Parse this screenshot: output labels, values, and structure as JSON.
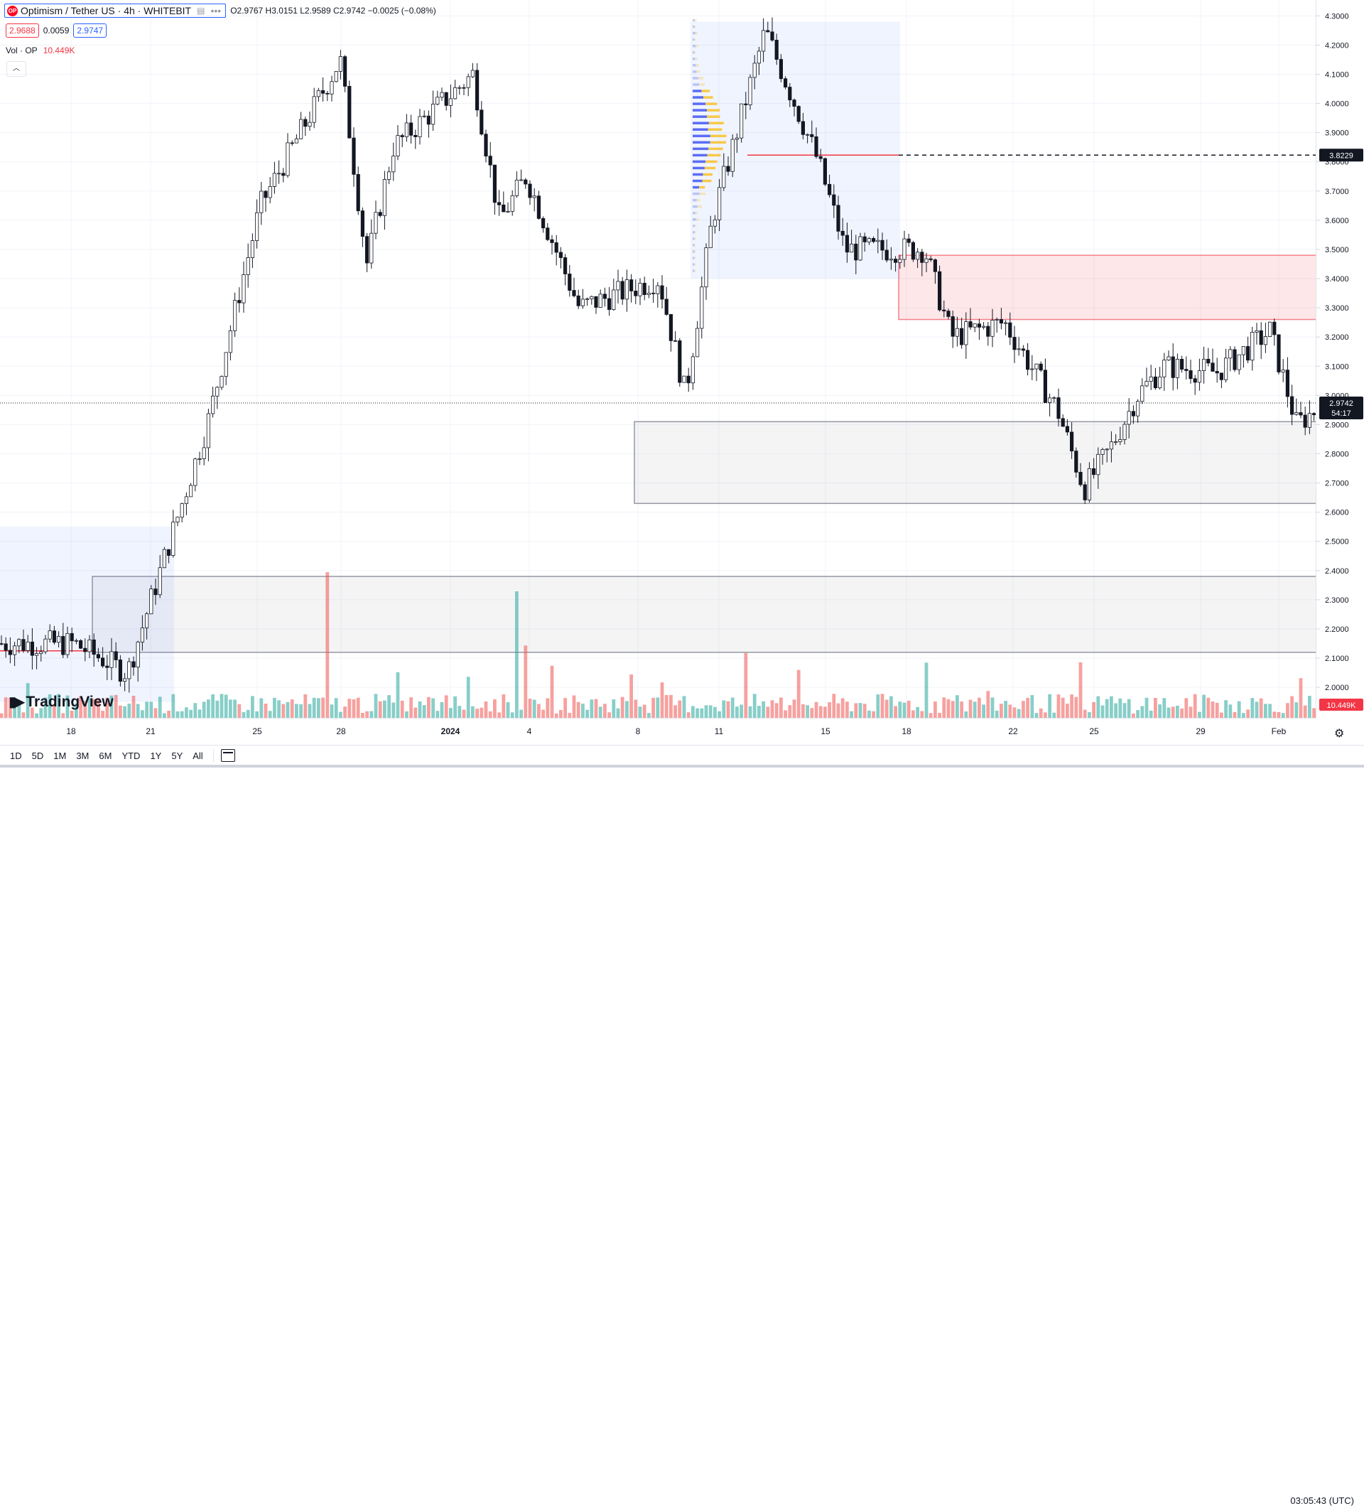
{
  "header": {
    "symbol_title": "Optimism / Tether US · 4h · WHITEBIT",
    "logo_text": "OP",
    "ohlc": "O2.9767 H3.0151 L2.9589 C2.9742 −0.0025 (−0.08%)",
    "sell_price": "2.9688",
    "spread": "0.0059",
    "buy_price": "2.9747",
    "volume_label": "Vol · OP",
    "volume_value": "10.449K"
  },
  "price_axis": {
    "ticks": [
      "4.3000",
      "4.2000",
      "4.1000",
      "4.0000",
      "3.9000",
      "3.8000",
      "3.7000",
      "3.6000",
      "3.5000",
      "3.4000",
      "3.3000",
      "3.2000",
      "3.1000",
      "3.0000",
      "2.9000",
      "2.8000",
      "2.7000",
      "2.6000",
      "2.5000",
      "2.4000",
      "2.3000",
      "2.2000",
      "2.1000",
      "2.0000"
    ],
    "level_label": "3.8229",
    "last_price_label": "2.9742",
    "countdown": "54:17",
    "volume_badge": "10.449K"
  },
  "time_axis": {
    "labels": [
      "18",
      "21",
      "25",
      "28",
      "2024",
      "4",
      "8",
      "11",
      "15",
      "18",
      "22",
      "25",
      "29",
      "Feb"
    ]
  },
  "bottom_bar": {
    "ranges": [
      "1D",
      "5D",
      "1M",
      "3M",
      "6M",
      "YTD",
      "1Y",
      "5Y",
      "All"
    ],
    "clock": "03:05:43 (UTC)"
  },
  "branding": {
    "logo_text": "TradingView"
  },
  "colors": {
    "up": "#131722",
    "down": "#131722",
    "vol_up": "#26a69a",
    "vol_down": "#ef5350",
    "resistance_zone": "#f23645",
    "support_zone": "#9598a1",
    "level_line": "#131722",
    "accent": "#2962ff"
  },
  "chart_data": {
    "type": "candlestick",
    "symbol": "OP/USDT",
    "interval": "4h",
    "ylim": [
      1.92,
      4.33
    ],
    "dates_start": "Dec 15",
    "x_tick_labels": [
      "18",
      "21",
      "25",
      "28",
      "2024",
      "4",
      "8",
      "11",
      "15",
      "18",
      "22",
      "25",
      "29",
      "Feb"
    ],
    "key_points": [
      {
        "date": "Dec 17",
        "price": 2.15
      },
      {
        "date": "Dec 19",
        "price": 2.05
      },
      {
        "date": "Dec 22",
        "price": 2.9
      },
      {
        "date": "Dec 24",
        "price": 3.65
      },
      {
        "date": "Dec 27",
        "price": 4.15
      },
      {
        "date": "Dec 28",
        "price": 3.45
      },
      {
        "date": "Dec 29",
        "price": 3.85
      },
      {
        "date": "Jan 1",
        "price": 4.1
      },
      {
        "date": "Jan 2",
        "price": 3.6
      },
      {
        "date": "Jan 3",
        "price": 3.75
      },
      {
        "date": "Jan 5",
        "price": 3.3
      },
      {
        "date": "Jan 8",
        "price": 3.4
      },
      {
        "date": "Jan 9",
        "price": 3.0
      },
      {
        "date": "Jan 10",
        "price": 3.6
      },
      {
        "date": "Jan 12",
        "price": 4.25
      },
      {
        "date": "Jan 14",
        "price": 3.8
      },
      {
        "date": "Jan 15",
        "price": 3.5
      },
      {
        "date": "Jan 18",
        "price": 3.5
      },
      {
        "date": "Jan 19",
        "price": 3.2
      },
      {
        "date": "Jan 21",
        "price": 3.25
      },
      {
        "date": "Jan 23",
        "price": 2.95
      },
      {
        "date": "Jan 24",
        "price": 2.68
      },
      {
        "date": "Jan 25",
        "price": 2.82
      },
      {
        "date": "Jan 26",
        "price": 3.0
      },
      {
        "date": "Jan 27",
        "price": 3.1
      },
      {
        "date": "Jan 29",
        "price": 3.08
      },
      {
        "date": "Jan 31",
        "price": 3.22
      },
      {
        "date": "Feb 1",
        "price": 2.9
      },
      {
        "date": "Feb 2",
        "price": 2.97
      }
    ],
    "zones": [
      {
        "name": "resistance",
        "from": 3.26,
        "to": 3.48
      },
      {
        "name": "support",
        "from": 2.63,
        "to": 2.91
      },
      {
        "name": "lower",
        "from": 2.12,
        "to": 2.38
      }
    ],
    "horizontal_level": 3.8229,
    "last_price": 2.9742
  }
}
